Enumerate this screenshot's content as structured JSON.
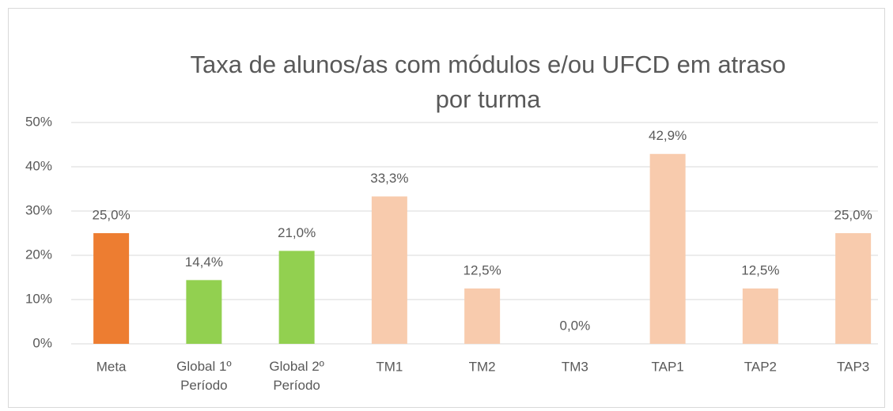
{
  "chart_data": {
    "type": "bar",
    "title": "Taxa de alunos/as com módulos e/ou UFCD em atraso por turma",
    "categories": [
      "Meta",
      "Global 1º Período",
      "Global 2º Período",
      "TM1",
      "TM2",
      "TM3",
      "TAP1",
      "TAP2",
      "TAP3"
    ],
    "values": [
      25.0,
      14.4,
      21.0,
      33.3,
      12.5,
      0.0,
      42.9,
      12.5,
      25.0
    ],
    "value_labels": [
      "25,0%",
      "14,4%",
      "21,0%",
      "33,3%",
      "12,5%",
      "0,0%",
      "42,9%",
      "12,5%",
      "25,0%"
    ],
    "colors": [
      "#ed7d31",
      "#92d050",
      "#92d050",
      "#f8cbad",
      "#f8cbad",
      "#f8cbad",
      "#f8cbad",
      "#f8cbad",
      "#f8cbad"
    ],
    "ylim": [
      0,
      50
    ],
    "yticks": [
      {
        "value": 0,
        "label": "0%"
      },
      {
        "value": 10,
        "label": "10%"
      },
      {
        "value": 20,
        "label": "20%"
      },
      {
        "value": 30,
        "label": "30%"
      },
      {
        "value": 40,
        "label": "40%"
      },
      {
        "value": 50,
        "label": "50%"
      }
    ],
    "grid": true
  }
}
